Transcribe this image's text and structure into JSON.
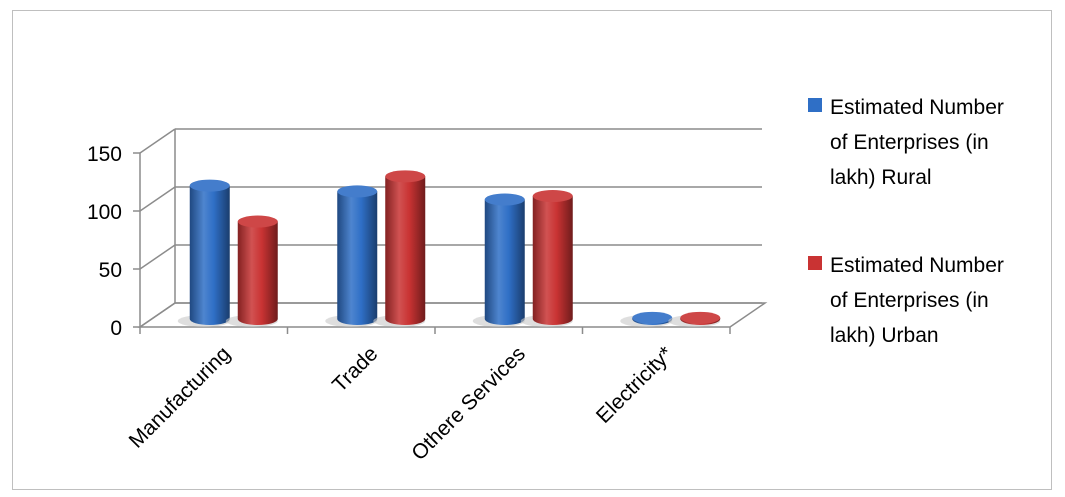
{
  "chart_data": {
    "type": "bar",
    "categories": [
      "Manufacturing",
      "Trade",
      "Othere Services",
      "Electricity*"
    ],
    "series": [
      {
        "name": "Estimated Number of Enterprises (in lakh) Rural",
        "values": [
          115,
          110,
          103,
          1
        ],
        "color": "#2f6fc6"
      },
      {
        "name": "Estimated Number of Enterprises (in lakh) Urban",
        "values": [
          84,
          123,
          106,
          1
        ],
        "color": "#c93333"
      }
    ],
    "yticks": [
      "0",
      "50",
      "100",
      "150"
    ],
    "ylim": [
      0,
      150
    ],
    "grid": true,
    "legend_position": "right",
    "style": "3d-cylinder"
  }
}
